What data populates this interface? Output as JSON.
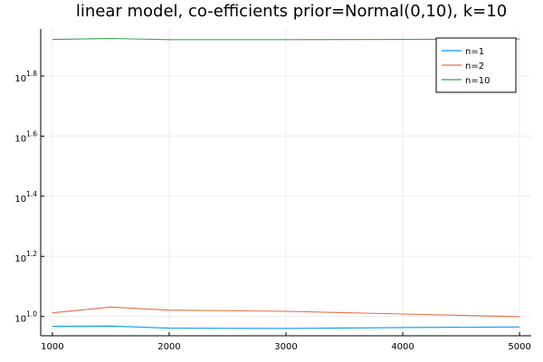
{
  "chart_data": {
    "type": "line",
    "title": "linear model, co-efficients prior=Normal(0,10), k=10",
    "xlabel": "",
    "ylabel": "",
    "yscale": "log10",
    "x": [
      1000,
      1500,
      2000,
      3000,
      4000,
      5000
    ],
    "xlim": [
      900,
      5100
    ],
    "ylim_exponent": [
      0.9357,
      1.9567
    ],
    "x_ticks": [
      1000,
      2000,
      3000,
      4000,
      5000
    ],
    "y_ticks": [
      {
        "base": "10",
        "exp": "1.0",
        "value_exponent": 1.0
      },
      {
        "base": "10",
        "exp": "1.2",
        "value_exponent": 1.2
      },
      {
        "base": "10",
        "exp": "1.4",
        "value_exponent": 1.4
      },
      {
        "base": "10",
        "exp": "1.6",
        "value_exponent": 1.6
      },
      {
        "base": "10",
        "exp": "1.8",
        "value_exponent": 1.8
      }
    ],
    "grid": true,
    "legend_position": "top-right",
    "series": [
      {
        "name": "n=1",
        "color": "#009AFA",
        "y_exponent": [
          0.967,
          0.968,
          0.961,
          0.96,
          0.963,
          0.965
        ]
      },
      {
        "name": "n=2",
        "color": "#E36F47",
        "y_exponent": [
          1.012,
          1.031,
          1.021,
          1.017,
          1.008,
          0.999
        ]
      },
      {
        "name": "n=10",
        "color": "#3EA44E",
        "y_exponent": [
          1.922,
          1.925,
          1.921,
          1.921,
          1.922,
          1.923
        ]
      }
    ]
  }
}
